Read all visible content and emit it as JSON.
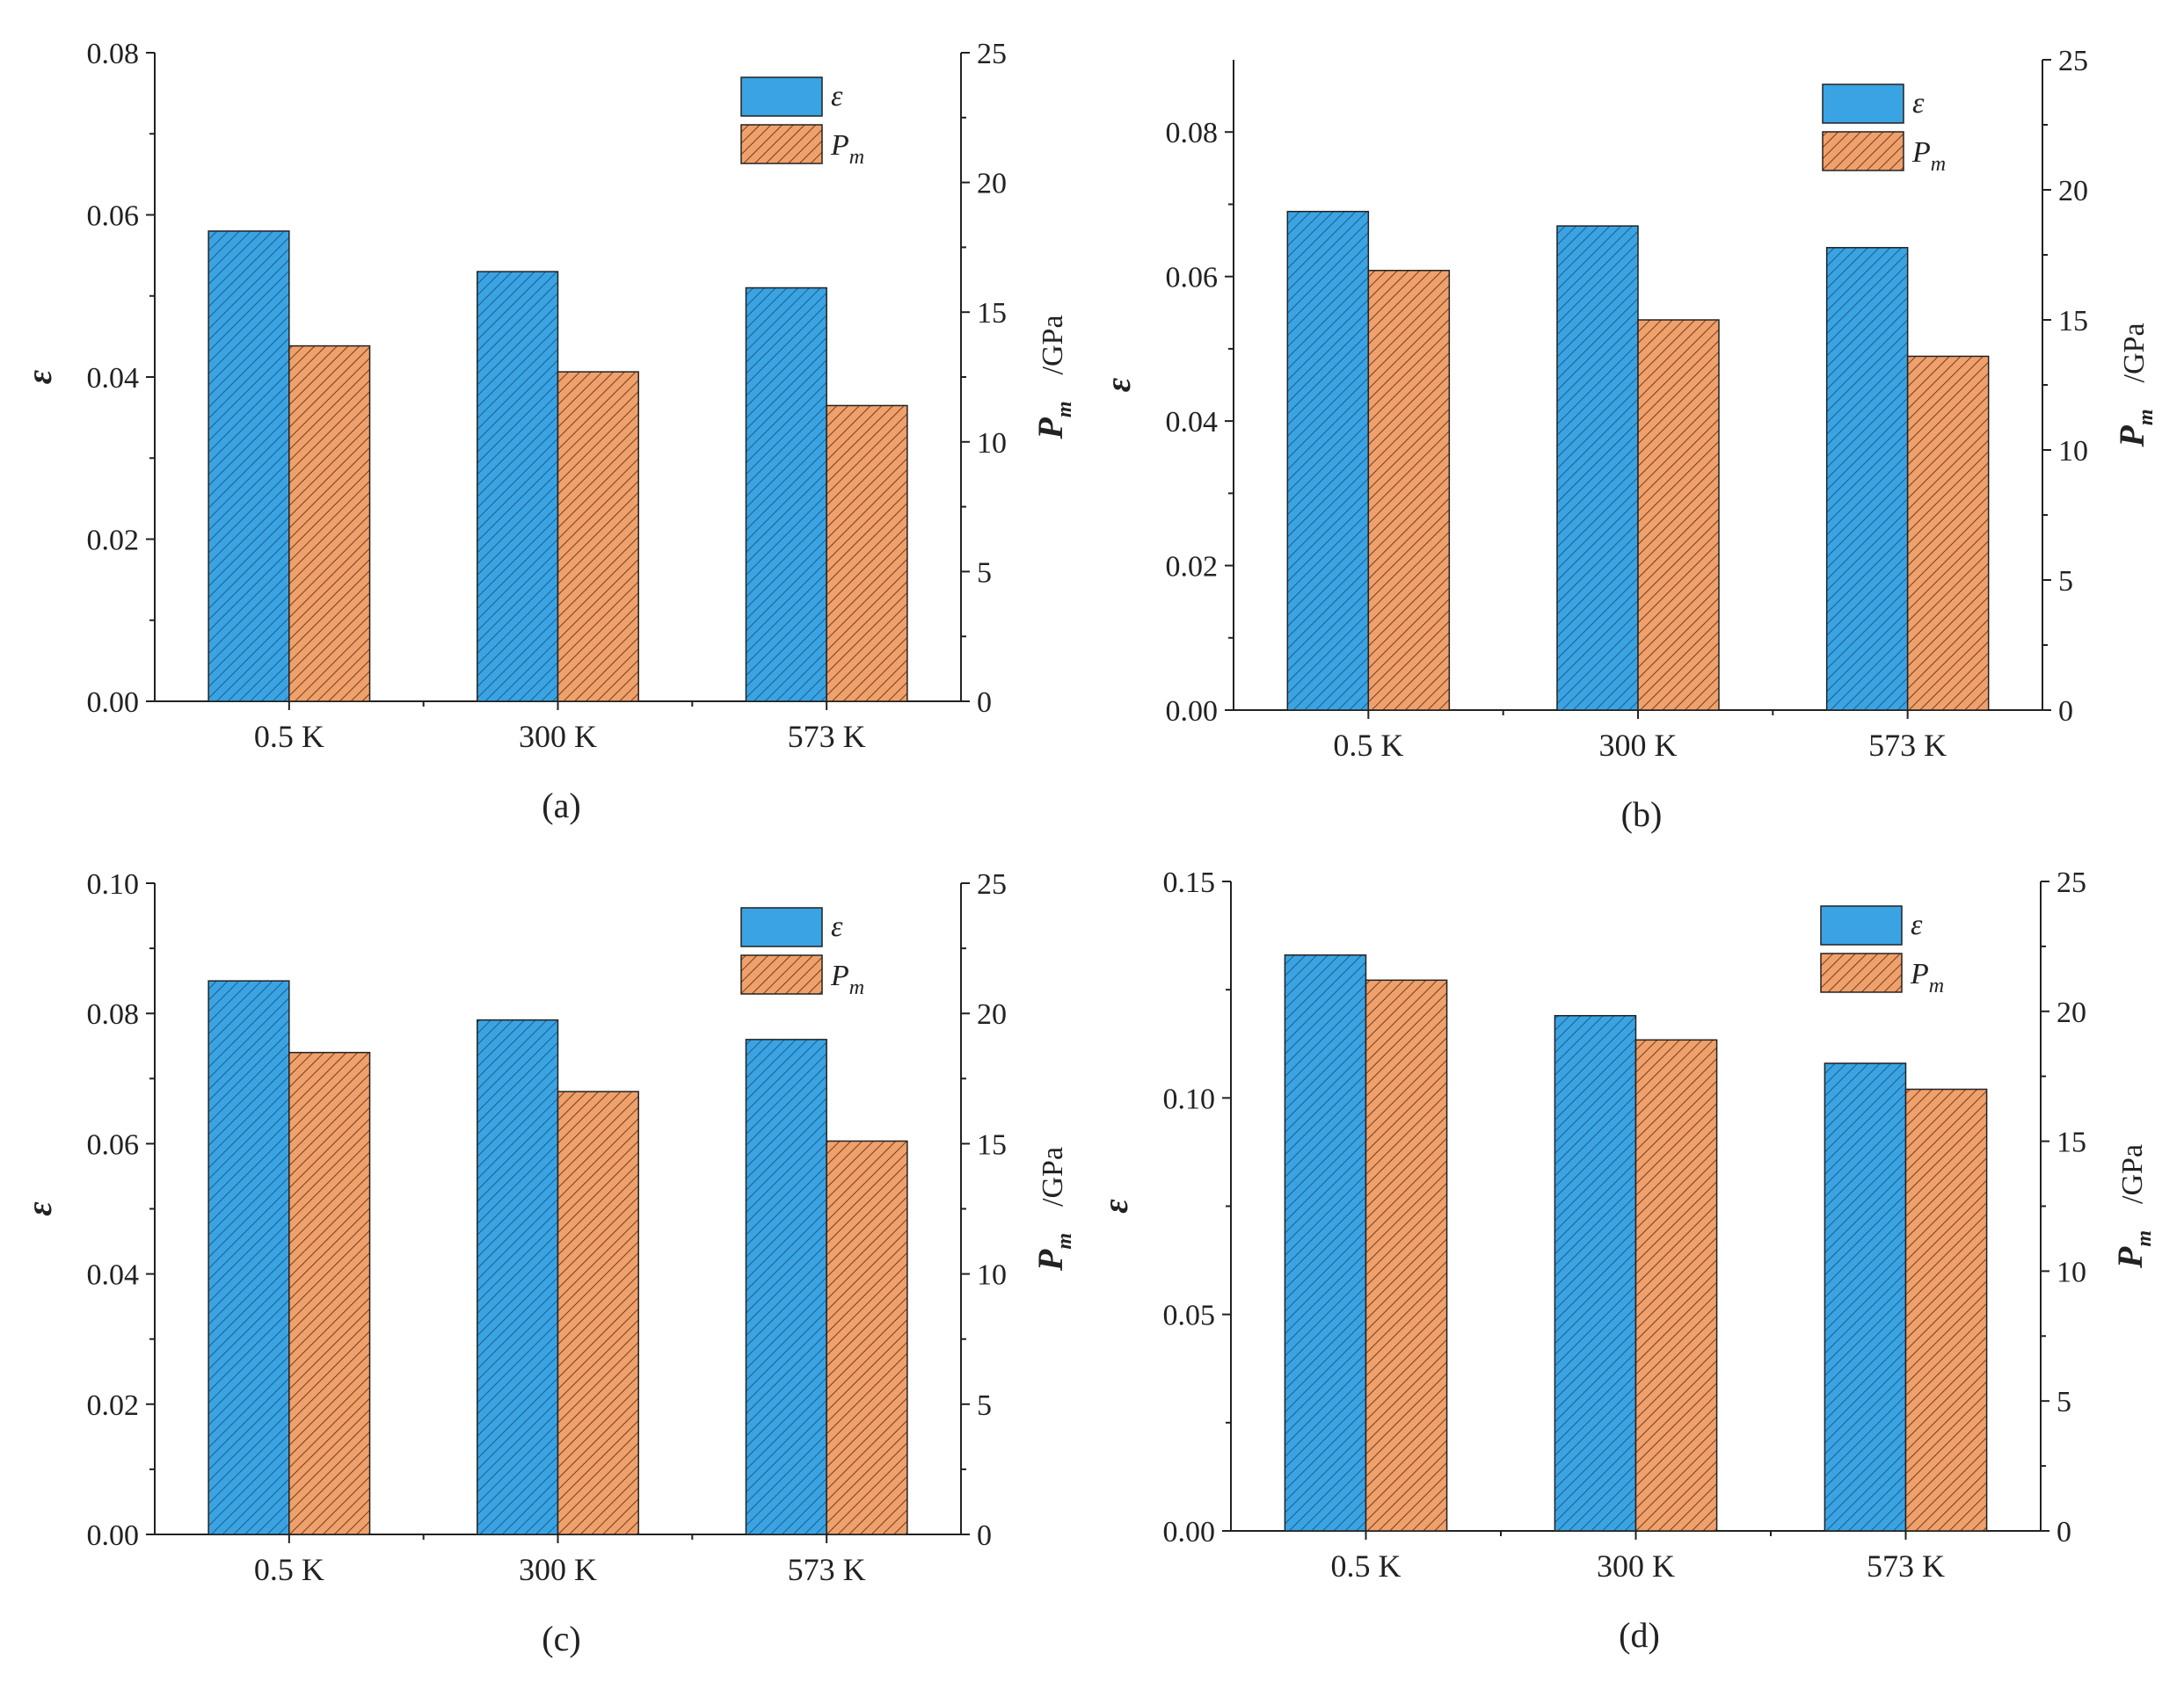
{
  "colors": {
    "series_1": "#3aa3e3",
    "series_2": "#f0a06a",
    "hatch": "#1a3a55",
    "axis": "#222222"
  },
  "chart_data": [
    {
      "panel_label": "(a)",
      "type": "bar",
      "categories": [
        "0.5 K",
        "300 K",
        "573 K"
      ],
      "series": [
        {
          "name": "ε",
          "axis": "left",
          "values": [
            0.058,
            0.053,
            0.051
          ]
        },
        {
          "name": "Pm",
          "axis": "right",
          "values": [
            13.7,
            12.7,
            11.4
          ]
        }
      ],
      "ylabel_left": "ε",
      "ylabel_right_var": "P",
      "ylabel_right_sub": "m",
      "ylabel_right_unit": "/GPa",
      "ylim_left": [
        0,
        0.08
      ],
      "yticks_left": [
        "0.00",
        "0.02",
        "0.04",
        "0.06",
        "0.08"
      ],
      "ylim_right": [
        0,
        25
      ],
      "yticks_right": [
        "0",
        "5",
        "10",
        "15",
        "20",
        "25"
      ],
      "grid": false,
      "legend": "top-right"
    },
    {
      "panel_label": "(b)",
      "type": "bar",
      "categories": [
        "0.5 K",
        "300 K",
        "573 K"
      ],
      "series": [
        {
          "name": "ε",
          "axis": "left",
          "values": [
            0.069,
            0.067,
            0.064
          ]
        },
        {
          "name": "Pm",
          "axis": "right",
          "values": [
            16.9,
            15.0,
            13.6
          ]
        }
      ],
      "ylabel_left": "ε",
      "ylabel_right_var": "P",
      "ylabel_right_sub": "m",
      "ylabel_right_unit": "/GPa",
      "ylim_left": [
        0,
        0.09
      ],
      "yticks_left": [
        "0.00",
        "0.02",
        "0.04",
        "0.06",
        "0.08"
      ],
      "ylim_right": [
        0,
        25
      ],
      "yticks_right": [
        "0",
        "5",
        "10",
        "15",
        "20",
        "25"
      ],
      "grid": false,
      "legend": "top-right"
    },
    {
      "panel_label": "(c)",
      "type": "bar",
      "categories": [
        "0.5 K",
        "300 K",
        "573 K"
      ],
      "series": [
        {
          "name": "ε",
          "axis": "left",
          "values": [
            0.085,
            0.079,
            0.076
          ]
        },
        {
          "name": "Pm",
          "axis": "right",
          "values": [
            18.5,
            17.0,
            15.1
          ]
        }
      ],
      "ylabel_left": "ε",
      "ylabel_right_var": "P",
      "ylabel_right_sub": "m",
      "ylabel_right_unit": "/GPa",
      "ylim_left": [
        0,
        0.1
      ],
      "yticks_left": [
        "0.00",
        "0.02",
        "0.04",
        "0.06",
        "0.08",
        "0.10"
      ],
      "ylim_right": [
        0,
        25
      ],
      "yticks_right": [
        "0",
        "5",
        "10",
        "15",
        "20",
        "25"
      ],
      "grid": false,
      "legend": "top-right"
    },
    {
      "panel_label": "(d)",
      "type": "bar",
      "categories": [
        "0.5 K",
        "300 K",
        "573 K"
      ],
      "series": [
        {
          "name": "ε",
          "axis": "left",
          "values": [
            0.133,
            0.119,
            0.108
          ]
        },
        {
          "name": "Pm",
          "axis": "right",
          "values": [
            21.2,
            18.9,
            17.0
          ]
        }
      ],
      "ylabel_left": "ε",
      "ylabel_right_var": "P",
      "ylabel_right_sub": "m",
      "ylabel_right_unit": "/GPa",
      "ylim_left": [
        0,
        0.15
      ],
      "yticks_left": [
        "0.00",
        "0.05",
        "0.10",
        "0.15"
      ],
      "ylim_right": [
        0,
        25
      ],
      "yticks_right": [
        "0",
        "5",
        "10",
        "15",
        "20",
        "25"
      ],
      "grid": false,
      "legend": "top-right"
    }
  ]
}
